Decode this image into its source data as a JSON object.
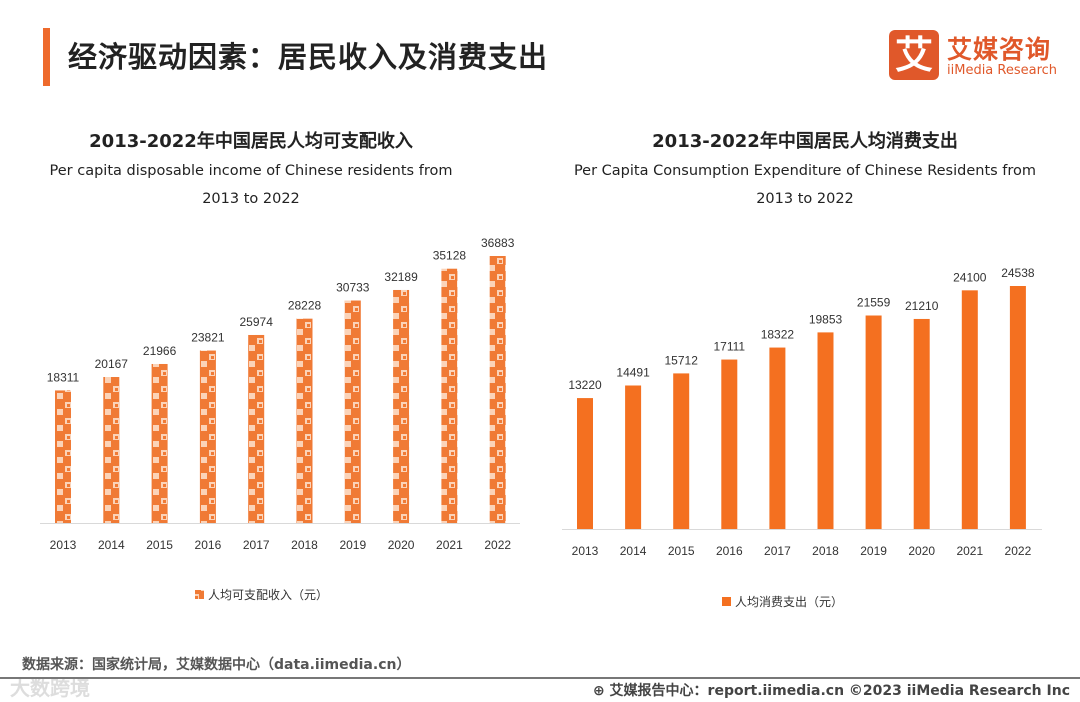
{
  "header": {
    "title": "经济驱动因素：居民收入及消费支出"
  },
  "logo": {
    "mark": "艾",
    "cn": "艾媒咨询",
    "en": "iiMedia Research"
  },
  "chart_data": [
    {
      "type": "bar",
      "title": "2013-2022年中国居民人均可支配收入",
      "subtitle_line1": "Per capita disposable income of Chinese residents from",
      "subtitle_line2": "2013 to 2022",
      "categories": [
        "2013",
        "2014",
        "2015",
        "2016",
        "2017",
        "2018",
        "2019",
        "2020",
        "2021",
        "2022"
      ],
      "values": [
        18311,
        20167,
        21966,
        23821,
        25974,
        28228,
        30733,
        32189,
        35128,
        36883
      ],
      "legend": "人均可支配收入（元）",
      "legend_position": "bottom",
      "color": "#f07a35",
      "pattern": true
    },
    {
      "type": "bar",
      "title": "2013-2022年中国居民人均消费支出",
      "subtitle_line1": "Per Capita Consumption Expenditure of Chinese Residents from",
      "subtitle_line2": "2013 to 2022",
      "categories": [
        "2013",
        "2014",
        "2015",
        "2016",
        "2017",
        "2018",
        "2019",
        "2020",
        "2021",
        "2022"
      ],
      "values": [
        13220,
        14491,
        15712,
        17111,
        18322,
        19853,
        21559,
        21210,
        24100,
        24538
      ],
      "legend": "人均消费支出（元）",
      "legend_position": "bottom",
      "color": "#f47020",
      "pattern": false
    }
  ],
  "footer": {
    "source": "数据来源：国家统计局，艾媒数据中心（data.iimedia.cn）",
    "report": "⊕ 艾媒报告中心：report.iimedia.cn   ©2023  iiMedia Research  Inc",
    "watermark": "大数跨境"
  }
}
